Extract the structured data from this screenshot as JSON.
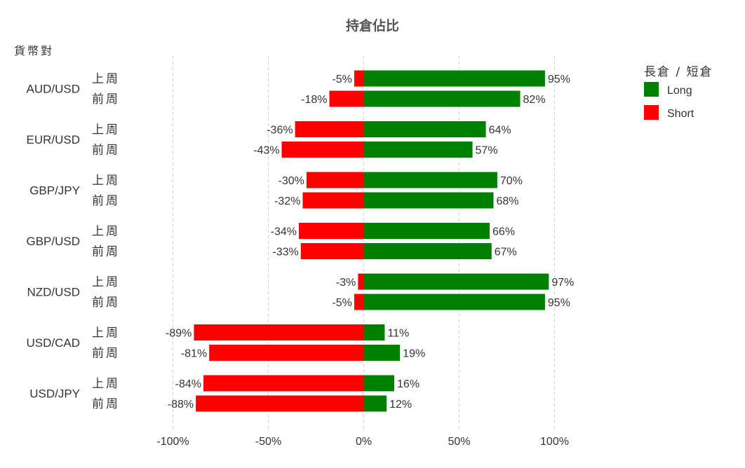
{
  "chart_data": {
    "type": "bar",
    "orientation": "horizontal-diverging",
    "title": "持倉佔比",
    "ylabel": "貨幣對",
    "xlim": [
      -100,
      100
    ],
    "x_ticks": [
      -100,
      -50,
      0,
      50,
      100
    ],
    "x_tick_labels": [
      "-100%",
      "-50%",
      "0%",
      "50%",
      "100%"
    ],
    "grid": true,
    "legend_position": "top-right",
    "legend": {
      "title": "長倉 / 短倉",
      "items": [
        {
          "name": "Long",
          "color": "#008000"
        },
        {
          "name": "Short",
          "color": "#ff0000"
        }
      ]
    },
    "periods": [
      "上周",
      "前周"
    ],
    "groups": [
      {
        "pair": "AUD/USD",
        "rows": [
          {
            "period": "上周",
            "long": 95,
            "short": -5,
            "long_label": "95%",
            "short_label": "-5%"
          },
          {
            "period": "前周",
            "long": 82,
            "short": -18,
            "long_label": "82%",
            "short_label": "-18%"
          }
        ]
      },
      {
        "pair": "EUR/USD",
        "rows": [
          {
            "period": "上周",
            "long": 64,
            "short": -36,
            "long_label": "64%",
            "short_label": "-36%"
          },
          {
            "period": "前周",
            "long": 57,
            "short": -43,
            "long_label": "57%",
            "short_label": "-43%"
          }
        ]
      },
      {
        "pair": "GBP/JPY",
        "rows": [
          {
            "period": "上周",
            "long": 70,
            "short": -30,
            "long_label": "70%",
            "short_label": "-30%"
          },
          {
            "period": "前周",
            "long": 68,
            "short": -32,
            "long_label": "68%",
            "short_label": "-32%"
          }
        ]
      },
      {
        "pair": "GBP/USD",
        "rows": [
          {
            "period": "上周",
            "long": 66,
            "short": -34,
            "long_label": "66%",
            "short_label": "-34%"
          },
          {
            "period": "前周",
            "long": 67,
            "short": -33,
            "long_label": "67%",
            "short_label": "-33%"
          }
        ]
      },
      {
        "pair": "NZD/USD",
        "rows": [
          {
            "period": "上周",
            "long": 97,
            "short": -3,
            "long_label": "97%",
            "short_label": "-3%"
          },
          {
            "period": "前周",
            "long": 95,
            "short": -5,
            "long_label": "95%",
            "short_label": "-5%"
          }
        ]
      },
      {
        "pair": "USD/CAD",
        "rows": [
          {
            "period": "上周",
            "long": 11,
            "short": -89,
            "long_label": "11%",
            "short_label": "-89%"
          },
          {
            "period": "前周",
            "long": 19,
            "short": -81,
            "long_label": "19%",
            "short_label": "-81%"
          }
        ]
      },
      {
        "pair": "USD/JPY",
        "rows": [
          {
            "period": "上周",
            "long": 16,
            "short": -84,
            "long_label": "16%",
            "short_label": "-84%"
          },
          {
            "period": "前周",
            "long": 12,
            "short": -88,
            "long_label": "12%",
            "short_label": "-88%"
          }
        ]
      }
    ]
  }
}
